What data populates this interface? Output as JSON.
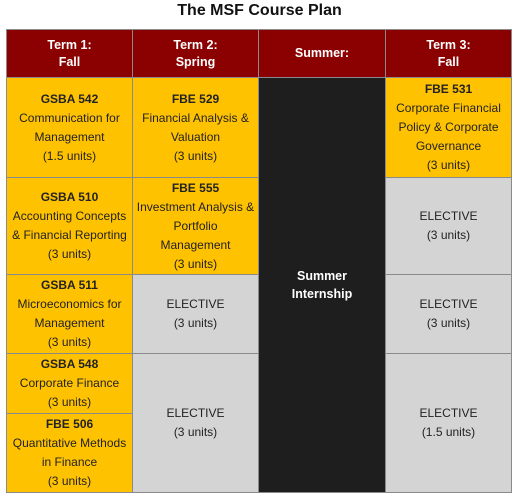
{
  "title": "The MSF Course Plan",
  "headers": {
    "term1": [
      "Term 1:",
      "Fall"
    ],
    "term2": [
      "Term 2:",
      "Spring"
    ],
    "summer": [
      "Summer:"
    ],
    "term3": [
      "Term 3:",
      "Fall"
    ]
  },
  "term1": [
    {
      "code": "GSBA 542",
      "lines": [
        "Communication for",
        "Management",
        "(1.5 units)"
      ]
    },
    {
      "code": "GSBA 510",
      "lines": [
        "Accounting Concepts",
        "& Financial Reporting",
        "(3 units)"
      ]
    },
    {
      "code": "GSBA 511",
      "lines": [
        "Microeconomics for",
        "Management",
        "(3 units)"
      ]
    },
    {
      "code": "GSBA 548",
      "lines": [
        "Corporate Finance",
        "(3 units)"
      ]
    },
    {
      "code": "FBE 506",
      "lines": [
        "Quantitative Methods",
        "in Finance",
        "(3 units)"
      ]
    }
  ],
  "term2": [
    {
      "code": "FBE 529",
      "lines": [
        "Financial Analysis &",
        "Valuation",
        "(3 units)"
      ]
    },
    {
      "code": "FBE 555",
      "lines": [
        "Investment Analysis &",
        "Portfolio",
        "Management",
        "(3 units)"
      ]
    },
    {
      "code": "",
      "lines": [
        "ELECTIVE",
        "(3 units)"
      ]
    },
    {
      "code": "",
      "lines": [
        "ELECTIVE",
        "(3 units)"
      ]
    }
  ],
  "summer": {
    "lines": [
      "Summer",
      "Internship"
    ]
  },
  "term3": [
    {
      "code": "FBE 531",
      "lines": [
        "Corporate Financial",
        "Policy & Corporate",
        "Governance",
        "(3 units)"
      ]
    },
    {
      "code": "",
      "lines": [
        "ELECTIVE",
        "(3 units)"
      ]
    },
    {
      "code": "",
      "lines": [
        "ELECTIVE",
        "(3 units)"
      ]
    },
    {
      "code": "",
      "lines": [
        "ELECTIVE",
        "(1.5 units)"
      ]
    }
  ]
}
